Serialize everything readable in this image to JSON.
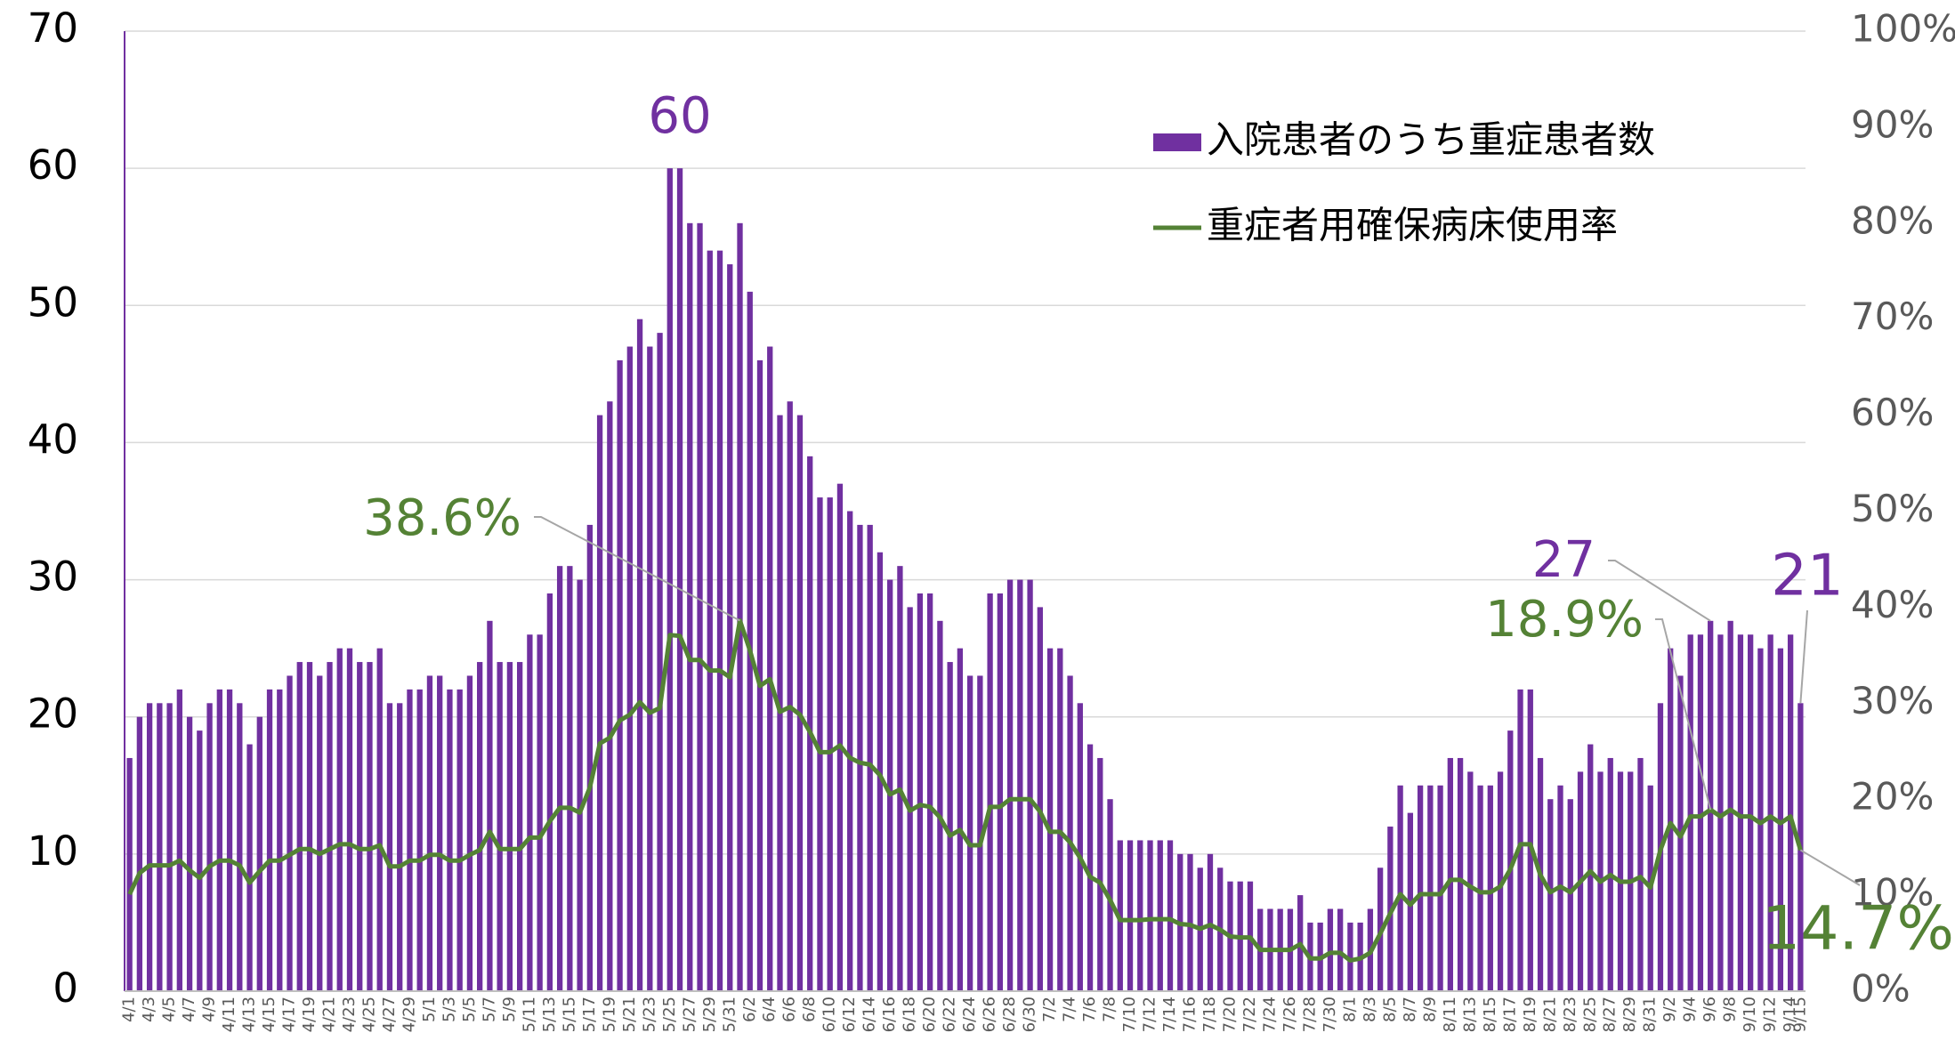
{
  "chart_data": {
    "type": "bar_line",
    "categories": [
      "4/1",
      null,
      "4/3",
      null,
      "4/5",
      null,
      "4/7",
      null,
      "4/9",
      null,
      "4/11",
      null,
      "4/13",
      null,
      "4/15",
      null,
      "4/17",
      null,
      "4/19",
      null,
      "4/21",
      null,
      "4/23",
      null,
      "4/25",
      null,
      "4/27",
      null,
      "4/29",
      null,
      "5/1",
      null,
      "5/3",
      null,
      "5/5",
      null,
      "5/7",
      null,
      "5/9",
      null,
      "5/11",
      null,
      "5/13",
      null,
      "5/15",
      null,
      "5/17",
      null,
      "5/19",
      null,
      "5/21",
      null,
      "5/23",
      null,
      "5/25",
      null,
      "5/27",
      null,
      "5/29",
      null,
      "5/31",
      null,
      "6/2",
      null,
      "6/4",
      null,
      "6/6",
      null,
      "6/8",
      null,
      "6/10",
      null,
      "6/12",
      null,
      "6/14",
      null,
      "6/16",
      null,
      "6/18",
      null,
      "6/20",
      null,
      "6/22",
      null,
      "6/24",
      null,
      "6/26",
      null,
      "6/28",
      null,
      "6/30",
      null,
      "7/2",
      null,
      "7/4",
      null,
      "7/6",
      null,
      "7/8",
      null,
      "7/10",
      null,
      "7/12",
      null,
      "7/14",
      null,
      "7/16",
      null,
      "7/18",
      null,
      "7/20",
      null,
      "7/22",
      null,
      "7/24",
      null,
      "7/26",
      null,
      "7/28",
      null,
      "7/30",
      null,
      "8/1",
      null,
      "8/3",
      null,
      "8/5",
      null,
      "8/7",
      null,
      "8/9",
      null,
      "8/11",
      null,
      "8/13",
      null,
      "8/15",
      null,
      "8/17",
      null,
      "8/19",
      null,
      "8/21",
      null,
      "8/23",
      null,
      "8/25",
      null,
      "8/27",
      null,
      "8/29",
      null,
      "8/31",
      null,
      "9/2",
      null,
      "9/4",
      null,
      "9/6",
      null,
      "9/8",
      null,
      "9/10",
      null,
      "9/12",
      null,
      "9/14",
      "9/15"
    ],
    "series": [
      {
        "name": "入院患者のうち重症患者数",
        "type": "bar",
        "color": "#7030a0",
        "values": [
          17,
          20,
          21,
          21,
          21,
          22,
          20,
          19,
          21,
          22,
          22,
          21,
          18,
          20,
          22,
          22,
          23,
          24,
          24,
          23,
          24,
          25,
          25,
          24,
          24,
          25,
          21,
          21,
          22,
          22,
          23,
          23,
          22,
          22,
          23,
          24,
          27,
          24,
          24,
          24,
          26,
          26,
          29,
          31,
          31,
          30,
          34,
          42,
          43,
          46,
          47,
          49,
          47,
          48,
          60,
          60,
          56,
          56,
          54,
          54,
          53,
          56,
          51,
          46,
          47,
          42,
          43,
          42,
          39,
          36,
          36,
          37,
          35,
          34,
          34,
          32,
          30,
          31,
          28,
          29,
          29,
          27,
          24,
          25,
          23,
          23,
          29,
          29,
          30,
          30,
          30,
          28,
          25,
          25,
          23,
          21,
          18,
          17,
          14,
          11,
          11,
          11,
          11,
          11,
          11,
          10,
          10,
          9,
          10,
          9,
          8,
          8,
          8,
          6,
          6,
          6,
          6,
          7,
          5,
          5,
          6,
          6,
          5,
          5,
          6,
          9,
          12,
          15,
          13,
          15,
          15,
          15,
          17,
          17,
          16,
          15,
          15,
          16,
          19,
          22,
          22,
          17,
          14,
          15,
          14,
          16,
          18,
          16,
          17,
          16,
          16,
          17,
          15,
          21,
          25,
          23,
          26,
          26,
          27,
          26,
          27,
          26,
          26,
          25,
          26,
          25,
          26,
          21
        ]
      },
      {
        "name": "重症者用確保病床使用率",
        "type": "line",
        "axis": "y2",
        "color": "#548235",
        "values": [
          10.1,
          12.3,
          13.1,
          13.1,
          13.1,
          13.6,
          12.6,
          11.8,
          13.0,
          13.6,
          13.6,
          13.1,
          11.3,
          12.5,
          13.6,
          13.6,
          14.2,
          14.8,
          14.8,
          14.3,
          14.8,
          15.3,
          15.3,
          14.8,
          14.8,
          15.2,
          13.0,
          13.0,
          13.6,
          13.6,
          14.2,
          14.2,
          13.6,
          13.6,
          14.2,
          14.7,
          16.6,
          14.8,
          14.8,
          14.8,
          16.0,
          16.0,
          17.7,
          19.1,
          19.1,
          18.6,
          21.2,
          25.8,
          26.4,
          28.2,
          28.8,
          30.1,
          29.0,
          29.5,
          37.1,
          37.0,
          34.5,
          34.5,
          33.4,
          33.4,
          32.7,
          38.6,
          35.5,
          31.8,
          32.5,
          29.1,
          29.6,
          28.8,
          27.0,
          24.9,
          24.9,
          25.6,
          24.3,
          23.8,
          23.6,
          22.5,
          20.5,
          21.0,
          18.8,
          19.4,
          19.2,
          18.1,
          16.2,
          16.8,
          15.2,
          15.2,
          19.2,
          19.2,
          20.0,
          20.0,
          20.0,
          18.7,
          16.6,
          16.6,
          15.5,
          13.9,
          11.9,
          11.3,
          9.5,
          7.4,
          7.4,
          7.4,
          7.5,
          7.5,
          7.5,
          7.0,
          6.9,
          6.5,
          6.9,
          6.4,
          5.7,
          5.6,
          5.6,
          4.3,
          4.3,
          4.3,
          4.3,
          4.9,
          3.4,
          3.4,
          4.0,
          4.0,
          3.2,
          3.4,
          4.0,
          6.0,
          8.1,
          10.1,
          9.0,
          10.1,
          10.1,
          10.1,
          11.6,
          11.6,
          10.9,
          10.3,
          10.3,
          10.9,
          12.7,
          15.3,
          15.3,
          12.1,
          10.3,
          10.9,
          10.3,
          11.4,
          12.5,
          11.4,
          12.1,
          11.4,
          11.4,
          11.9,
          10.8,
          14.7,
          17.5,
          16.1,
          18.2,
          18.2,
          18.9,
          18.2,
          18.9,
          18.2,
          18.2,
          17.5,
          18.2,
          17.5,
          18.2,
          14.7
        ]
      }
    ],
    "ylim": [
      0,
      70
    ],
    "yticks": [
      0,
      10,
      20,
      30,
      40,
      50,
      60,
      70
    ],
    "y2lim": [
      0,
      100
    ],
    "y2ticks": [
      {
        "value": 0,
        "label": "0%"
      },
      {
        "value": 10,
        "label": "10%"
      },
      {
        "value": 20,
        "label": "20%"
      },
      {
        "value": 30,
        "label": "30%"
      },
      {
        "value": 40,
        "label": "40%"
      },
      {
        "value": 50,
        "label": "50%"
      },
      {
        "value": 60,
        "label": "60%"
      },
      {
        "value": 70,
        "label": "70%"
      },
      {
        "value": 80,
        "label": "80%"
      },
      {
        "value": 90,
        "label": "90%"
      },
      {
        "value": 100,
        "label": "100%"
      }
    ],
    "grid": true,
    "legend": "top-right",
    "annotations": [
      {
        "text": "60"
      },
      {
        "text": "38.6%"
      },
      {
        "text": "27"
      },
      {
        "text": "18.9%"
      },
      {
        "text": "21"
      },
      {
        "text": "14.7%"
      }
    ]
  }
}
